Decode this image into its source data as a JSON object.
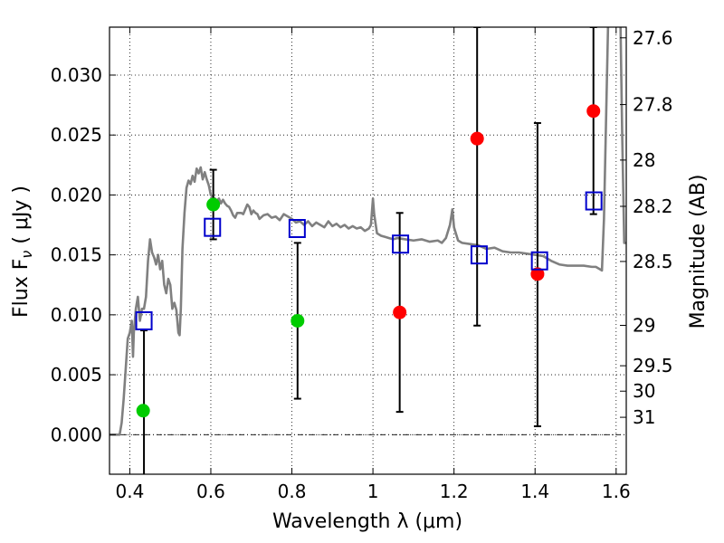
{
  "chart_data": {
    "type": "scatter",
    "xlabel": "Wavelength  λ (μm)",
    "ylabel": "Flux  F",
    "ylabel_sub": "ν",
    "ylabel_unit": "  ( μJy )",
    "y2label": "Magnitude (AB)",
    "xlim": [
      0.35,
      1.625
    ],
    "ylim": [
      -0.0033,
      0.034
    ],
    "grid": true,
    "x_ticks": [
      {
        "value": 0.4,
        "label": "0.4"
      },
      {
        "value": 0.6,
        "label": "0.6"
      },
      {
        "value": 0.8,
        "label": "0.8"
      },
      {
        "value": 1.0,
        "label": "1"
      },
      {
        "value": 1.2,
        "label": "1.2"
      },
      {
        "value": 1.4,
        "label": "1.4"
      },
      {
        "value": 1.6,
        "label": "1.6"
      }
    ],
    "y_ticks": [
      {
        "value": 0.0,
        "label": "0.000"
      },
      {
        "value": 0.005,
        "label": "0.005"
      },
      {
        "value": 0.01,
        "label": "0.010"
      },
      {
        "value": 0.015,
        "label": "0.015"
      },
      {
        "value": 0.02,
        "label": "0.020"
      },
      {
        "value": 0.025,
        "label": "0.025"
      },
      {
        "value": 0.03,
        "label": "0.030"
      }
    ],
    "y2_ticks": [
      {
        "mag": "27.6",
        "flux": 0.03311
      },
      {
        "mag": "27.8",
        "flux": 0.02754
      },
      {
        "mag": "28",
        "flux": 0.02291
      },
      {
        "mag": "28.2",
        "flux": 0.01905
      },
      {
        "mag": "28.5",
        "flux": 0.01445
      },
      {
        "mag": "29",
        "flux": 0.00912
      },
      {
        "mag": "29.5",
        "flux": 0.00575
      },
      {
        "mag": "30",
        "flux": 0.00363
      },
      {
        "mag": "31",
        "flux": 0.00145
      }
    ],
    "template_color": "#808080",
    "template_spectrum": [
      [
        0.35,
        0.0
      ],
      [
        0.36,
        0.0
      ],
      [
        0.37,
        0.0
      ],
      [
        0.375,
        0.0
      ],
      [
        0.38,
        0.001
      ],
      [
        0.385,
        0.003
      ],
      [
        0.39,
        0.0055
      ],
      [
        0.395,
        0.008
      ],
      [
        0.4,
        0.0085
      ],
      [
        0.405,
        0.0095
      ],
      [
        0.408,
        0.0065
      ],
      [
        0.41,
        0.0085
      ],
      [
        0.415,
        0.0105
      ],
      [
        0.42,
        0.0115
      ],
      [
        0.425,
        0.0095
      ],
      [
        0.43,
        0.0105
      ],
      [
        0.435,
        0.0105
      ],
      [
        0.44,
        0.0115
      ],
      [
        0.445,
        0.0145
      ],
      [
        0.45,
        0.0163
      ],
      [
        0.455,
        0.0152
      ],
      [
        0.46,
        0.0148
      ],
      [
        0.465,
        0.0142
      ],
      [
        0.47,
        0.015
      ],
      [
        0.475,
        0.0138
      ],
      [
        0.48,
        0.0145
      ],
      [
        0.485,
        0.0125
      ],
      [
        0.49,
        0.0118
      ],
      [
        0.495,
        0.013
      ],
      [
        0.5,
        0.0125
      ],
      [
        0.505,
        0.0105
      ],
      [
        0.51,
        0.011
      ],
      [
        0.515,
        0.0104
      ],
      [
        0.52,
        0.0085
      ],
      [
        0.523,
        0.0083
      ],
      [
        0.526,
        0.0105
      ],
      [
        0.53,
        0.0155
      ],
      [
        0.535,
        0.0185
      ],
      [
        0.54,
        0.0206
      ],
      [
        0.545,
        0.0212
      ],
      [
        0.55,
        0.0209
      ],
      [
        0.555,
        0.0216
      ],
      [
        0.56,
        0.0211
      ],
      [
        0.565,
        0.0222
      ],
      [
        0.57,
        0.0218
      ],
      [
        0.575,
        0.0223
      ],
      [
        0.58,
        0.0213
      ],
      [
        0.585,
        0.0219
      ],
      [
        0.59,
        0.0213
      ],
      [
        0.595,
        0.0208
      ],
      [
        0.6,
        0.02
      ],
      [
        0.605,
        0.0198
      ],
      [
        0.61,
        0.0197
      ],
      [
        0.615,
        0.0195
      ],
      [
        0.62,
        0.0197
      ],
      [
        0.625,
        0.0193
      ],
      [
        0.63,
        0.0196
      ],
      [
        0.635,
        0.0193
      ],
      [
        0.64,
        0.0191
      ],
      [
        0.645,
        0.019
      ],
      [
        0.65,
        0.0187
      ],
      [
        0.655,
        0.0183
      ],
      [
        0.66,
        0.0181
      ],
      [
        0.665,
        0.0185
      ],
      [
        0.67,
        0.0185
      ],
      [
        0.675,
        0.0185
      ],
      [
        0.68,
        0.0184
      ],
      [
        0.685,
        0.0188
      ],
      [
        0.69,
        0.0192
      ],
      [
        0.695,
        0.019
      ],
      [
        0.7,
        0.0184
      ],
      [
        0.705,
        0.0187
      ],
      [
        0.71,
        0.0185
      ],
      [
        0.715,
        0.0184
      ],
      [
        0.72,
        0.018
      ],
      [
        0.73,
        0.0183
      ],
      [
        0.74,
        0.0184
      ],
      [
        0.75,
        0.0181
      ],
      [
        0.76,
        0.0182
      ],
      [
        0.77,
        0.0179
      ],
      [
        0.78,
        0.0184
      ],
      [
        0.79,
        0.0182
      ],
      [
        0.8,
        0.018
      ],
      [
        0.81,
        0.0177
      ],
      [
        0.82,
        0.0178
      ],
      [
        0.83,
        0.0175
      ],
      [
        0.84,
        0.0178
      ],
      [
        0.85,
        0.0174
      ],
      [
        0.86,
        0.0177
      ],
      [
        0.87,
        0.0175
      ],
      [
        0.88,
        0.0173
      ],
      [
        0.89,
        0.0178
      ],
      [
        0.9,
        0.0174
      ],
      [
        0.91,
        0.0176
      ],
      [
        0.92,
        0.0173
      ],
      [
        0.93,
        0.0175
      ],
      [
        0.94,
        0.0172
      ],
      [
        0.95,
        0.0174
      ],
      [
        0.96,
        0.0172
      ],
      [
        0.97,
        0.0173
      ],
      [
        0.98,
        0.017
      ],
      [
        0.99,
        0.0172
      ],
      [
        0.995,
        0.0175
      ],
      [
        1.0,
        0.0197
      ],
      [
        1.003,
        0.0184
      ],
      [
        1.01,
        0.0168
      ],
      [
        1.02,
        0.0166
      ],
      [
        1.03,
        0.0165
      ],
      [
        1.04,
        0.0164
      ],
      [
        1.05,
        0.0163
      ],
      [
        1.06,
        0.0164
      ],
      [
        1.08,
        0.0163
      ],
      [
        1.1,
        0.0162
      ],
      [
        1.12,
        0.0163
      ],
      [
        1.14,
        0.0161
      ],
      [
        1.16,
        0.0162
      ],
      [
        1.17,
        0.016
      ],
      [
        1.18,
        0.0164
      ],
      [
        1.19,
        0.0175
      ],
      [
        1.196,
        0.0188
      ],
      [
        1.2,
        0.0173
      ],
      [
        1.21,
        0.0162
      ],
      [
        1.22,
        0.016
      ],
      [
        1.24,
        0.0159
      ],
      [
        1.26,
        0.0158
      ],
      [
        1.28,
        0.0155
      ],
      [
        1.3,
        0.0156
      ],
      [
        1.32,
        0.0153
      ],
      [
        1.34,
        0.0152
      ],
      [
        1.36,
        0.0152
      ],
      [
        1.38,
        0.0151
      ],
      [
        1.4,
        0.015
      ],
      [
        1.42,
        0.0149
      ],
      [
        1.44,
        0.0145
      ],
      [
        1.46,
        0.0142
      ],
      [
        1.48,
        0.0141
      ],
      [
        1.5,
        0.0141
      ],
      [
        1.52,
        0.0141
      ],
      [
        1.54,
        0.014
      ],
      [
        1.55,
        0.014
      ],
      [
        1.56,
        0.0138
      ],
      [
        1.565,
        0.0137
      ],
      [
        1.57,
        0.018
      ],
      [
        1.575,
        0.026
      ],
      [
        1.58,
        0.034
      ],
      [
        1.588,
        0.037
      ],
      [
        1.595,
        0.036
      ],
      [
        1.6,
        0.035
      ],
      [
        1.605,
        0.037
      ],
      [
        1.61,
        0.036
      ],
      [
        1.615,
        0.025
      ],
      [
        1.62,
        0.016
      ],
      [
        1.625,
        0.016
      ]
    ],
    "observed_points": [
      {
        "x": 0.433,
        "y": 0.002,
        "color": "#00cc00"
      },
      {
        "x": 0.606,
        "y": 0.0192,
        "color": "#00cc00"
      },
      {
        "x": 0.814,
        "y": 0.0095,
        "color": "#00cc00"
      },
      {
        "x": 1.066,
        "y": 0.0102,
        "color": "#ff0000"
      },
      {
        "x": 1.257,
        "y": 0.0247,
        "color": "#ff0000"
      },
      {
        "x": 1.406,
        "y": 0.0134,
        "color": "#ff0000"
      },
      {
        "x": 1.544,
        "y": 0.027,
        "color": "#ff0000"
      }
    ],
    "model_points": [
      {
        "x": 0.435,
        "y": 0.0095
      },
      {
        "x": 0.604,
        "y": 0.0173
      },
      {
        "x": 0.813,
        "y": 0.0172
      },
      {
        "x": 1.068,
        "y": 0.0159
      },
      {
        "x": 1.262,
        "y": 0.015
      },
      {
        "x": 1.411,
        "y": 0.0145
      },
      {
        "x": 1.545,
        "y": 0.0195
      }
    ],
    "model_color": "#0000cc",
    "error_bars": [
      {
        "x": 0.435,
        "low": -0.004,
        "high": 0.0087
      },
      {
        "x": 0.606,
        "low": 0.0163,
        "high": 0.0221
      },
      {
        "x": 0.814,
        "low": 0.003,
        "high": 0.016
      },
      {
        "x": 1.066,
        "low": 0.0019,
        "high": 0.0185
      },
      {
        "x": 1.257,
        "low": 0.0091,
        "high": 0.034
      },
      {
        "x": 1.406,
        "low": 0.0007,
        "high": 0.026
      },
      {
        "x": 1.544,
        "low": 0.0184,
        "high": 0.034
      }
    ]
  }
}
